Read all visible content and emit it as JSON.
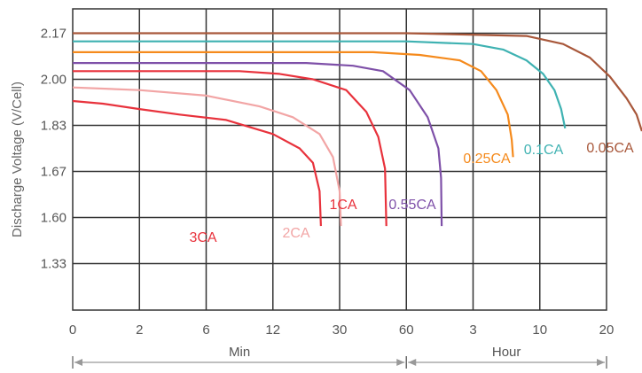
{
  "chart_data": {
    "type": "line",
    "title": "",
    "ylabel": "Discharge Voltage (V/Cell)",
    "y_ticks": [
      "2.17",
      "2.00",
      "1.83",
      "1.67",
      "1.60",
      "1.33"
    ],
    "x_ticks": [
      "0",
      "2",
      "6",
      "12",
      "30",
      "60",
      "3",
      "10",
      "20"
    ],
    "x_groups": [
      {
        "label": "Min",
        "from_tick": 0,
        "to_tick": 5
      },
      {
        "label": "Hour",
        "from_tick": 5,
        "to_tick": 8
      }
    ],
    "grid": true,
    "x_scale": "each labeled tick equally spaced; x values below are tick indices (0..8)",
    "series": [
      {
        "name": "3CA",
        "color": "#e8323c",
        "points": [
          [
            0,
            1.92
          ],
          [
            0.45,
            1.91
          ],
          [
            1,
            1.89
          ],
          [
            1.6,
            1.87
          ],
          [
            2.3,
            1.85
          ],
          [
            3,
            1.8
          ],
          [
            3.4,
            1.75
          ],
          [
            3.6,
            1.7
          ],
          [
            3.7,
            1.64
          ],
          [
            3.72,
            1.55
          ]
        ]
      },
      {
        "name": "2CA",
        "color": "#f2a5a5",
        "points": [
          [
            0,
            1.97
          ],
          [
            1,
            1.96
          ],
          [
            2,
            1.94
          ],
          [
            2.8,
            1.9
          ],
          [
            3.3,
            1.86
          ],
          [
            3.7,
            1.8
          ],
          [
            3.9,
            1.72
          ],
          [
            4,
            1.64
          ],
          [
            4.02,
            1.55
          ]
        ]
      },
      {
        "name": "1CA",
        "color": "#e8323c",
        "points": [
          [
            0,
            2.03
          ],
          [
            1.5,
            2.03
          ],
          [
            2.5,
            2.03
          ],
          [
            3.1,
            2.02
          ],
          [
            3.6,
            2.0
          ],
          [
            4.1,
            1.96
          ],
          [
            4.4,
            1.88
          ],
          [
            4.58,
            1.79
          ],
          [
            4.68,
            1.68
          ],
          [
            4.7,
            1.55
          ]
        ]
      },
      {
        "name": "0.55CA",
        "color": "#7e50a8",
        "points": [
          [
            0,
            2.06
          ],
          [
            2,
            2.06
          ],
          [
            3.5,
            2.06
          ],
          [
            4.2,
            2.05
          ],
          [
            4.65,
            2.03
          ],
          [
            5.05,
            1.96
          ],
          [
            5.32,
            1.86
          ],
          [
            5.48,
            1.75
          ],
          [
            5.52,
            1.66
          ],
          [
            5.53,
            1.55
          ]
        ]
      },
      {
        "name": "0.25CA",
        "color": "#f58a1c",
        "points": [
          [
            0,
            2.1
          ],
          [
            3,
            2.1
          ],
          [
            4.5,
            2.1
          ],
          [
            5.2,
            2.09
          ],
          [
            5.8,
            2.07
          ],
          [
            6.12,
            2.03
          ],
          [
            6.35,
            1.96
          ],
          [
            6.52,
            1.87
          ],
          [
            6.58,
            1.78
          ],
          [
            6.6,
            1.72
          ]
        ]
      },
      {
        "name": "0.1CA",
        "color": "#3fb2b2",
        "points": [
          [
            0,
            2.14
          ],
          [
            3,
            2.14
          ],
          [
            5,
            2.14
          ],
          [
            6,
            2.13
          ],
          [
            6.45,
            2.11
          ],
          [
            6.8,
            2.07
          ],
          [
            7.05,
            2.02
          ],
          [
            7.22,
            1.96
          ],
          [
            7.32,
            1.89
          ],
          [
            7.38,
            1.82
          ]
        ]
      },
      {
        "name": "0.05CA",
        "color": "#a8573a",
        "points": [
          [
            0,
            2.17
          ],
          [
            3,
            2.17
          ],
          [
            5,
            2.17
          ],
          [
            6.8,
            2.16
          ],
          [
            7.35,
            2.13
          ],
          [
            7.75,
            2.08
          ],
          [
            8.05,
            2.01
          ],
          [
            8.3,
            1.93
          ],
          [
            8.45,
            1.87
          ],
          [
            8.53,
            1.81
          ]
        ]
      }
    ]
  }
}
